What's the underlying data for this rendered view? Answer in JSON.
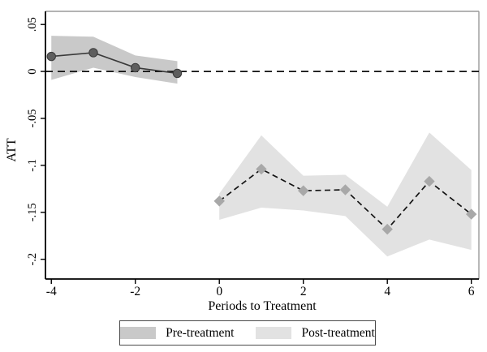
{
  "chart_data": {
    "type": "line",
    "title": "",
    "xlabel": "Periods to Treatment",
    "ylabel": "ATT",
    "xlim": [
      -4.14,
      6.18
    ],
    "ylim": [
      -0.221,
      0.064
    ],
    "x_ticks": [
      -4,
      -2,
      0,
      2,
      4,
      6
    ],
    "x_tick_labels": [
      "-4",
      "-2",
      "0",
      "2",
      "4",
      "6"
    ],
    "y_ticks": [
      0.05,
      0,
      -0.05,
      -0.1,
      -0.15,
      -0.2
    ],
    "y_tick_labels": [
      ".05",
      "0",
      "-.05",
      "-.1",
      "-.15",
      "-.2"
    ],
    "grid": false,
    "reference_line": {
      "y": 0,
      "style": "dashed",
      "color": "#111111"
    },
    "series": [
      {
        "name": "Pre-treatment",
        "marker": "circle",
        "line_style": "solid",
        "x": [
          -4,
          -3,
          -2,
          -1
        ],
        "y": [
          0.016,
          0.02,
          0.004,
          -0.002
        ],
        "ci_low": [
          -0.009,
          0.004,
          -0.006,
          -0.013
        ],
        "ci_high": [
          0.038,
          0.037,
          0.017,
          0.011
        ],
        "band_color": "#c9c9c9",
        "marker_color": "#5e5e5e",
        "line_color": "#3a3a3a"
      },
      {
        "name": "Post-treatment",
        "marker": "diamond",
        "line_style": "dashed",
        "x": [
          0,
          1,
          2,
          3,
          4,
          5,
          6
        ],
        "y": [
          -0.138,
          -0.104,
          -0.127,
          -0.126,
          -0.168,
          -0.117,
          -0.152
        ],
        "ci_low": [
          -0.158,
          -0.145,
          -0.148,
          -0.154,
          -0.197,
          -0.179,
          -0.19
        ],
        "ci_high": [
          -0.13,
          -0.068,
          -0.111,
          -0.11,
          -0.144,
          -0.065,
          -0.105
        ],
        "band_color": "#e2e2e2",
        "marker_color": "#a8a8a8",
        "line_color": "#141414"
      }
    ],
    "legend": {
      "position": "bottom",
      "entries": [
        "Pre-treatment",
        "Post-treatment"
      ]
    },
    "axis_colors": {
      "axis": "#000000",
      "frame": "#9a9a9a"
    }
  }
}
